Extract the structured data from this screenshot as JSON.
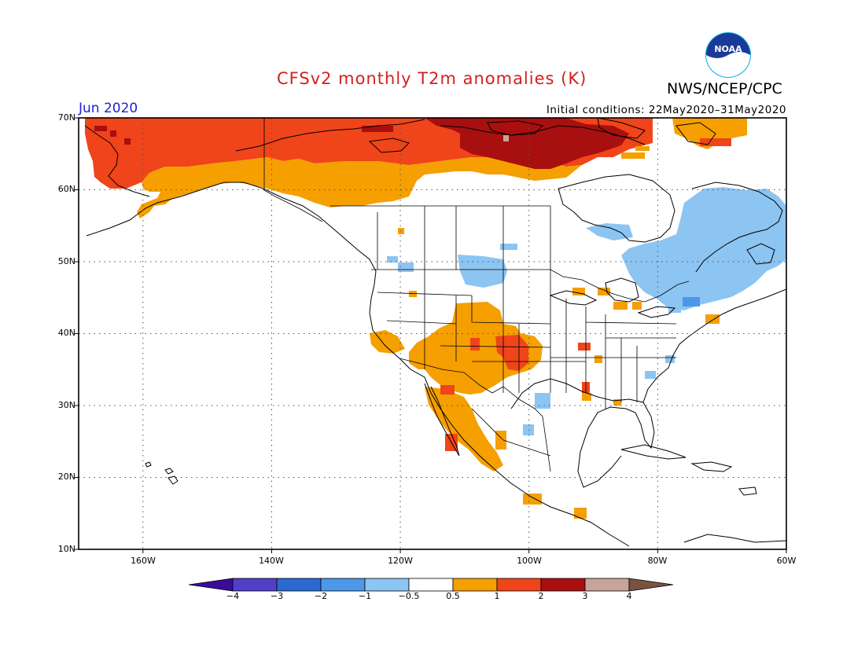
{
  "title": "CFSv2 monthly T2m anomalies (K)",
  "agency": "NWS/NCEP/CPC",
  "logo_text": "NOAA",
  "month": "Jun 2020",
  "initial_conditions": "Initial conditions: 22May2020–31May2020",
  "map": {
    "lon_range": [
      -170,
      -60
    ],
    "lat_range": [
      10,
      70
    ],
    "lat_labels": [
      "70N",
      "60N",
      "50N",
      "40N",
      "30N",
      "20N",
      "10N"
    ],
    "lon_labels": [
      "160W",
      "140W",
      "120W",
      "100W",
      "80W",
      "60W"
    ],
    "grid": "dotted",
    "anomaly_regions": [
      {
        "name": "northern-canada-strong-warm",
        "level": 2
      },
      {
        "name": "alaska-warm",
        "level": 1
      },
      {
        "name": "nunavut-hot-core",
        "level": 3
      },
      {
        "name": "southwest-us-mild-warm",
        "level": 0.5
      },
      {
        "name": "southern-plains-warm",
        "level": 1
      },
      {
        "name": "eastern-canada-cool",
        "level": -0.5
      },
      {
        "name": "upper-midwest-cool",
        "level": -0.5
      }
    ]
  },
  "colorbar": {
    "colors": [
      "#3a0c9e",
      "#5040c8",
      "#2a6ad0",
      "#4d98e8",
      "#8cc4f2",
      "#ffffff",
      "#f59f00",
      "#f0441a",
      "#a80f0f",
      "#c7a598",
      "#7a5240"
    ],
    "tick_labels": [
      "−4",
      "−3",
      "−2",
      "−1",
      "−0.5",
      "0.5",
      "1",
      "2",
      "3",
      "4"
    ]
  },
  "palette": {
    "hot": "#a80f0f",
    "warm_strong": "#f0441a",
    "warm": "#f59f00",
    "cool": "#8cc4f2",
    "title_color": "#d42020",
    "month_color": "#2020d0"
  }
}
